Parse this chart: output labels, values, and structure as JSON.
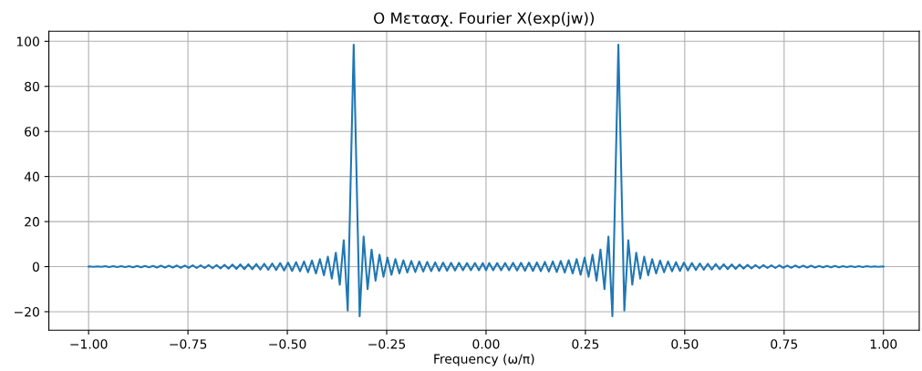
{
  "chart_data": {
    "type": "line",
    "title": "Ο Μετασχ. Fourier X(exp(jw))",
    "xlabel": "Frequency (ω/π)",
    "xlim": [
      -1.1,
      1.09
    ],
    "xticks": [
      {
        "value": -1.0,
        "label": "−1.00"
      },
      {
        "value": -0.75,
        "label": "−0.75"
      },
      {
        "value": -0.5,
        "label": "−0.50"
      },
      {
        "value": -0.25,
        "label": "−0.25"
      },
      {
        "value": 0,
        "label": "0.00"
      },
      {
        "value": 0.25,
        "label": "0.25"
      },
      {
        "value": 0.5,
        "label": "0.50"
      },
      {
        "value": 0.75,
        "label": "0.75"
      },
      {
        "value": 1.0,
        "label": "1.00"
      }
    ],
    "ylim": [
      -28.2,
      104.5
    ],
    "yticks": [
      {
        "value": -20,
        "label": "−20"
      },
      0,
      20,
      40,
      60,
      80,
      100
    ],
    "grid": true,
    "line_style": "solid",
    "marker": "none",
    "series": [
      {
        "color": "#1f77b4",
        "x": [
          -1.0,
          -0.998,
          -0.988,
          -0.978,
          -0.968,
          -0.958,
          -0.948,
          -0.938,
          -0.928,
          -0.918,
          -0.908,
          -0.898,
          -0.888,
          -0.878,
          -0.868,
          -0.858,
          -0.848,
          -0.838,
          -0.828,
          -0.818,
          -0.808,
          -0.798,
          -0.788,
          -0.778,
          -0.768,
          -0.758,
          -0.748,
          -0.738,
          -0.728,
          -0.718,
          -0.708,
          -0.698,
          -0.688,
          -0.678,
          -0.668,
          -0.658,
          -0.648,
          -0.638,
          -0.628,
          -0.618,
          -0.608,
          -0.598,
          -0.588,
          -0.578,
          -0.568,
          -0.558,
          -0.548,
          -0.538,
          -0.528,
          -0.518,
          -0.508,
          -0.498,
          -0.488,
          -0.478,
          -0.468,
          -0.458,
          -0.448,
          -0.438,
          -0.428,
          -0.418,
          -0.408,
          -0.398,
          -0.388,
          -0.378,
          -0.368,
          -0.358,
          -0.348,
          -0.333,
          -0.318,
          -0.308,
          -0.298,
          -0.288,
          -0.278,
          -0.268,
          -0.258,
          -0.248,
          -0.238,
          -0.228,
          -0.218,
          -0.208,
          -0.198,
          -0.188,
          -0.178,
          -0.168,
          -0.158,
          -0.148,
          -0.138,
          -0.128,
          -0.118,
          -0.108,
          -0.098,
          -0.088,
          -0.078,
          -0.068,
          -0.058,
          -0.048,
          -0.038,
          -0.028,
          -0.018,
          -0.008,
          0.0,
          0.008,
          0.018,
          0.028,
          0.038,
          0.048,
          0.058,
          0.068,
          0.078,
          0.088,
          0.098,
          0.108,
          0.118,
          0.128,
          0.138,
          0.148,
          0.158,
          0.168,
          0.178,
          0.188,
          0.198,
          0.208,
          0.218,
          0.228,
          0.238,
          0.248,
          0.258,
          0.268,
          0.278,
          0.288,
          0.298,
          0.308,
          0.318,
          0.333,
          0.348,
          0.358,
          0.368,
          0.378,
          0.388,
          0.398,
          0.408,
          0.418,
          0.428,
          0.438,
          0.448,
          0.458,
          0.468,
          0.478,
          0.488,
          0.498,
          0.508,
          0.518,
          0.528,
          0.538,
          0.548,
          0.558,
          0.568,
          0.578,
          0.588,
          0.598,
          0.608,
          0.618,
          0.628,
          0.638,
          0.648,
          0.658,
          0.668,
          0.678,
          0.688,
          0.698,
          0.708,
          0.718,
          0.728,
          0.738,
          0.748,
          0.758,
          0.768,
          0.778,
          0.788,
          0.798,
          0.808,
          0.818,
          0.828,
          0.838,
          0.848,
          0.858,
          0.868,
          0.878,
          0.888,
          0.898,
          0.908,
          0.918,
          0.928,
          0.938,
          0.948,
          0.958,
          0.968,
          0.978,
          0.988,
          0.998,
          1.0
        ],
        "values": [
          0,
          0.1,
          -0.1,
          0.1,
          -0.1,
          0.2,
          -0.2,
          0.2,
          -0.2,
          0.2,
          -0.2,
          0.2,
          -0.3,
          0.3,
          -0.3,
          0.3,
          -0.3,
          0.3,
          -0.4,
          0.4,
          -0.4,
          0.4,
          -0.4,
          0.5,
          -0.5,
          0.5,
          -0.5,
          0.6,
          -0.6,
          0.6,
          -0.6,
          0.7,
          -0.7,
          0.7,
          -0.8,
          0.8,
          -0.9,
          0.9,
          -1.0,
          1.0,
          -1.1,
          1.1,
          -1.2,
          1.2,
          -1.3,
          1.3,
          -1.4,
          1.4,
          -1.5,
          1.6,
          -1.7,
          1.8,
          -1.9,
          2.0,
          -2.1,
          2.3,
          -2.5,
          2.7,
          -3.0,
          3.3,
          -3.8,
          4.4,
          -5.3,
          6.2,
          -8.0,
          11.7,
          -19.5,
          98.5,
          -22,
          13.3,
          -10,
          7.6,
          -6.2,
          5.3,
          -4.5,
          4.0,
          -3.6,
          3.3,
          -3.0,
          2.8,
          -2.6,
          2.5,
          -2.4,
          2.3,
          -2.2,
          2.1,
          -2.0,
          1.9,
          -1.9,
          1.8,
          -1.8,
          1.7,
          -1.7,
          1.7,
          -1.6,
          1.6,
          -1.6,
          1.6,
          -1.6,
          1.6,
          -1.6,
          1.6,
          -1.6,
          1.6,
          -1.6,
          1.6,
          -1.6,
          1.7,
          -1.7,
          1.7,
          -1.8,
          1.8,
          -1.9,
          1.9,
          -2.0,
          2.1,
          -2.2,
          2.3,
          -2.4,
          2.5,
          -2.6,
          2.8,
          -3.0,
          3.3,
          -3.6,
          4.0,
          -4.5,
          5.3,
          -6.2,
          7.6,
          -10,
          13.3,
          -22,
          98.5,
          -19.5,
          11.7,
          -8.0,
          6.2,
          -5.3,
          4.4,
          -3.8,
          3.3,
          -3.0,
          2.7,
          -2.5,
          2.3,
          -2.1,
          2.0,
          -1.9,
          1.8,
          -1.7,
          1.6,
          -1.5,
          1.4,
          -1.4,
          1.3,
          -1.3,
          1.2,
          -1.2,
          1.1,
          -1.1,
          1.0,
          -1.0,
          0.9,
          -0.9,
          0.8,
          -0.8,
          0.7,
          -0.7,
          0.7,
          -0.6,
          0.6,
          -0.6,
          0.6,
          -0.5,
          0.5,
          -0.5,
          0.5,
          -0.4,
          0.4,
          -0.4,
          0.4,
          -0.4,
          0.3,
          -0.3,
          0.3,
          -0.3,
          0.3,
          -0.3,
          0.2,
          -0.2,
          0.2,
          -0.2,
          0.2,
          -0.2,
          0.2,
          -0.1,
          0.1,
          -0.1,
          0.1,
          0
        ]
      }
    ]
  }
}
